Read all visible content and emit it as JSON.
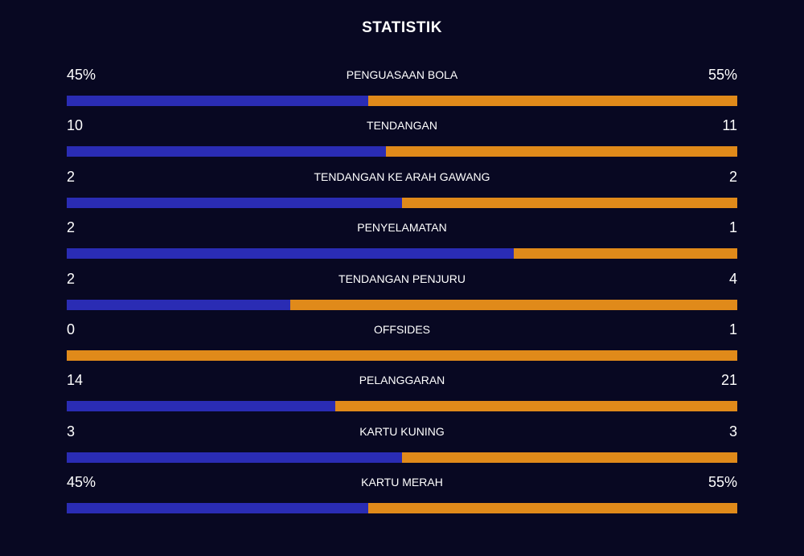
{
  "title": "STATISTIK",
  "colors": {
    "background": "#080822",
    "home": "#2a2cb4",
    "away": "#e08a1a",
    "text": "#ffffff"
  },
  "stats": [
    {
      "label": "PENGUASAAN BOLA",
      "left": "45%",
      "right": "55%",
      "left_share": 0.45
    },
    {
      "label": "TENDANGAN",
      "left": "10",
      "right": "11",
      "left_share": 0.476
    },
    {
      "label": "TENDANGAN KE ARAH GAWANG",
      "left": "2",
      "right": "2",
      "left_share": 0.5
    },
    {
      "label": "PENYELAMATAN",
      "left": "2",
      "right": "1",
      "left_share": 0.667
    },
    {
      "label": "TENDANGAN PENJURU",
      "left": "2",
      "right": "4",
      "left_share": 0.333
    },
    {
      "label": "OFFSIDES",
      "left": "0",
      "right": "1",
      "left_share": 0.0
    },
    {
      "label": "PELANGGARAN",
      "left": "14",
      "right": "21",
      "left_share": 0.4
    },
    {
      "label": "KARTU KUNING",
      "left": "3",
      "right": "3",
      "left_share": 0.5
    },
    {
      "label": "KARTU MERAH",
      "left": "45%",
      "right": "55%",
      "left_share": 0.45
    }
  ]
}
